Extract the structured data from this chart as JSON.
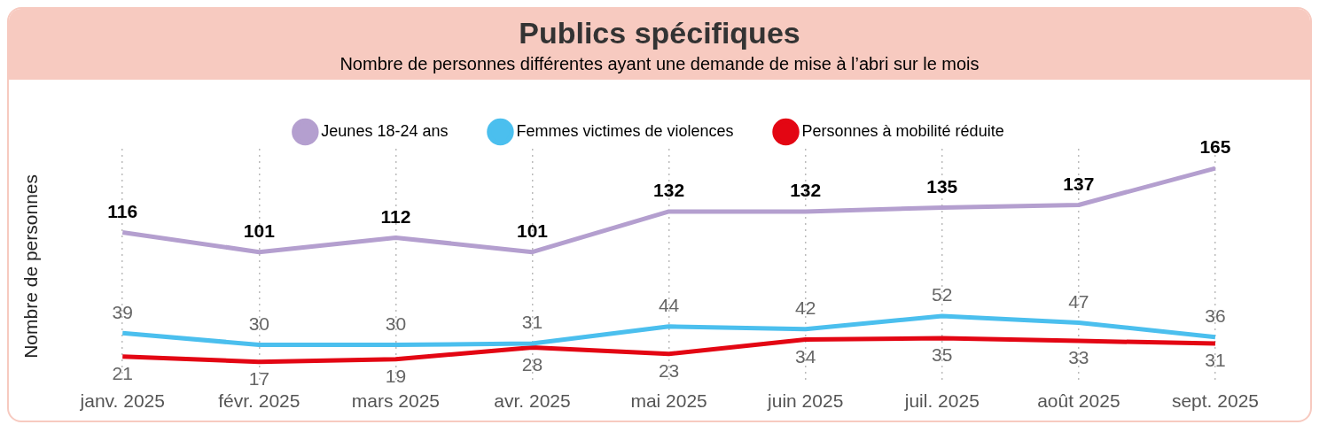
{
  "chart_data": {
    "type": "line",
    "title": "Publics spécifiques",
    "subtitle": "Nombre de personnes différentes ayant une demande de mise à l’abri sur le mois",
    "ylabel": "Nombre de personnes",
    "categories": [
      "janv. 2025",
      "févr. 2025",
      "mars 2025",
      "avr. 2025",
      "mai 2025",
      "juin 2025",
      "juil. 2025",
      "août 2025",
      "sept. 2025"
    ],
    "series": [
      {
        "name": "Jeunes 18-24 ans",
        "color": "#b49fcf",
        "values": [
          116,
          101,
          112,
          101,
          132,
          132,
          135,
          137,
          165
        ]
      },
      {
        "name": "Femmes victimes de violences",
        "color": "#4bbfee",
        "values": [
          39,
          30,
          30,
          31,
          44,
          42,
          52,
          47,
          36
        ]
      },
      {
        "name": "Personnes à mobilité réduite",
        "color": "#e30613",
        "values": [
          21,
          17,
          19,
          28,
          23,
          34,
          35,
          33,
          31
        ]
      }
    ],
    "data_labels": true,
    "grid": "x",
    "legend": "top",
    "marker": "none"
  }
}
